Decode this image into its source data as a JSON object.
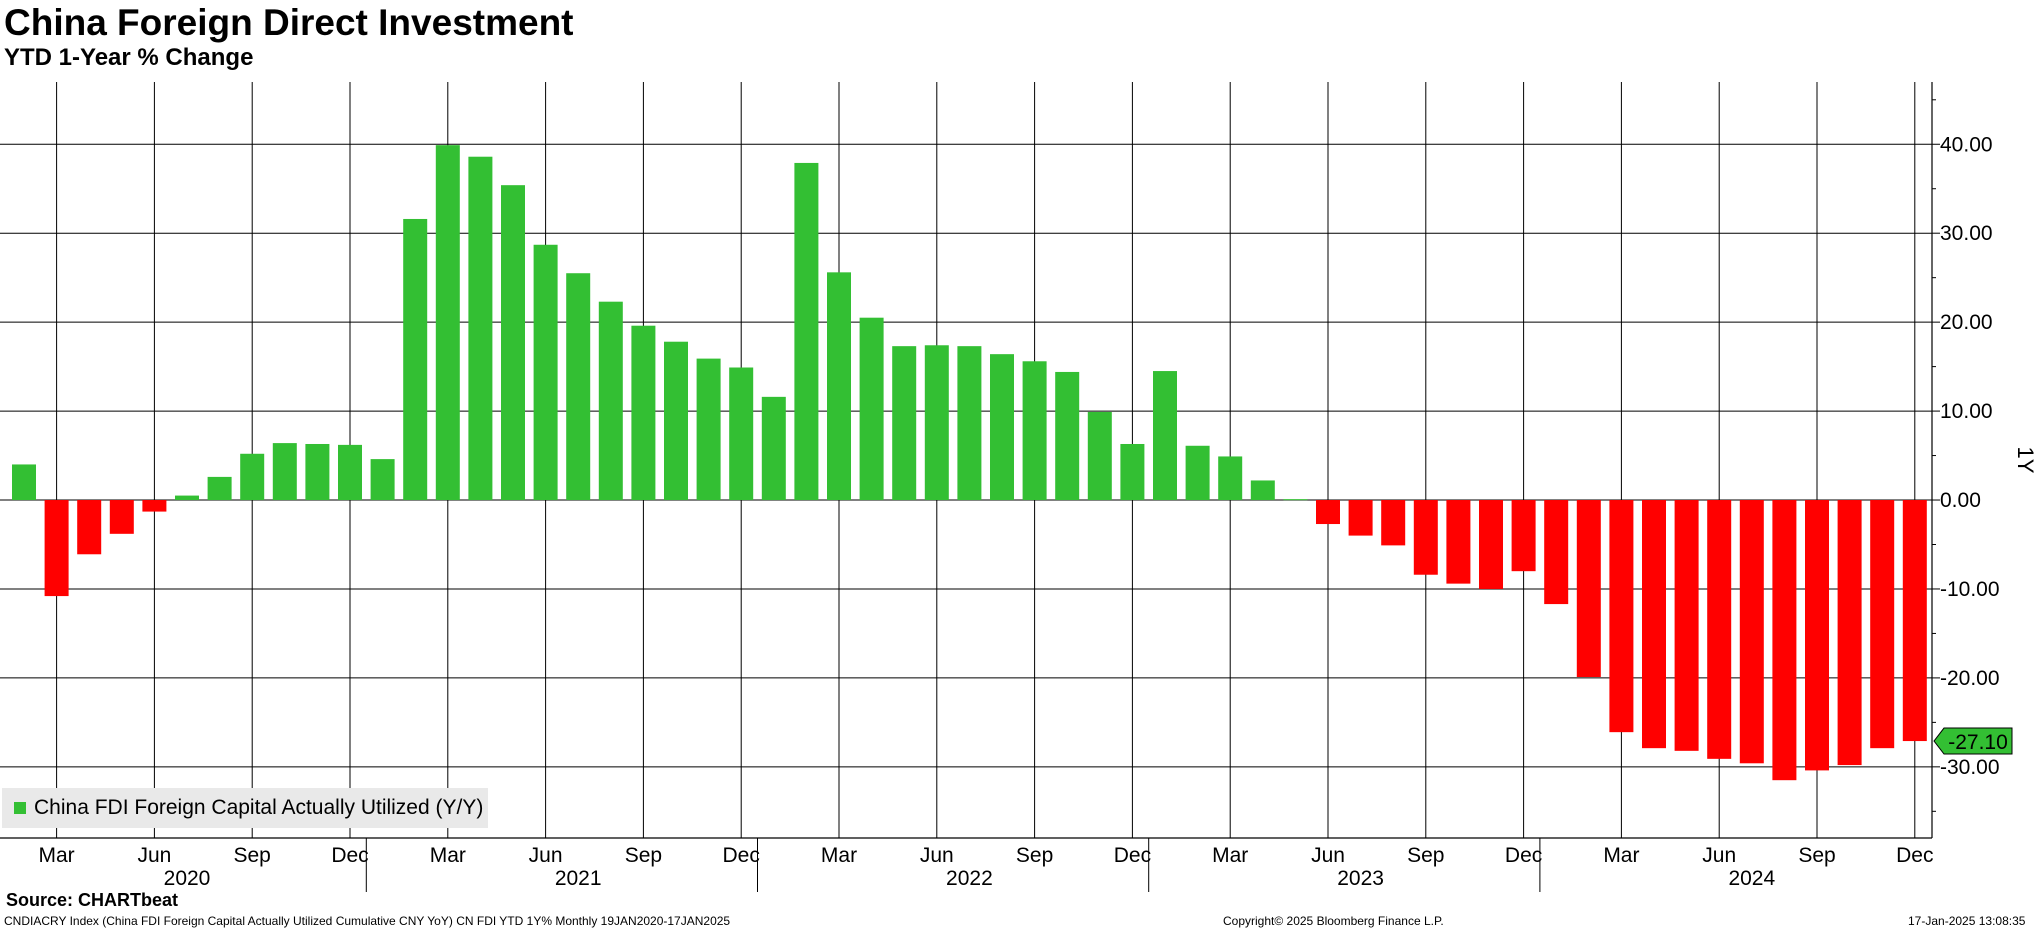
{
  "header": {
    "title": "China Foreign Direct Investment",
    "subtitle": "YTD 1-Year % Change"
  },
  "footer": {
    "source": "Source: CHARTbeat",
    "left": "CNDIACRY Index (China FDI Foreign Capital Actually Utilized Cumulative CNY YoY) CN FDI YTD 1Y%  Monthly 19JAN2020-17JAN2025",
    "center": "Copyright© 2025 Bloomberg Finance L.P.",
    "right": "17-Jan-2025 13:08:35"
  },
  "colors": {
    "positive": "#33bf33",
    "negative": "#ff0000",
    "last_label_bg": "#33bf33",
    "legend_bg": "#e9e9e9"
  },
  "chart_data": {
    "type": "bar",
    "ylabel": "1Y",
    "ylim": [
      -38,
      47
    ],
    "yticks": [
      40,
      30,
      20,
      10,
      0,
      -10,
      -20,
      -30
    ],
    "ytick_labels": [
      "40.00",
      "30.00",
      "20.00",
      "10.00",
      "0.00",
      "-10.00",
      "-20.00",
      "-30.00"
    ],
    "grid": true,
    "legend": {
      "position": "bottom-left",
      "label": "China FDI Foreign Capital Actually Utilized (Y/Y)"
    },
    "x": [
      "2020-02",
      "2020-03",
      "2020-04",
      "2020-05",
      "2020-06",
      "2020-07",
      "2020-08",
      "2020-09",
      "2020-10",
      "2020-11",
      "2020-12",
      "2021-01",
      "2021-02",
      "2021-03",
      "2021-04",
      "2021-05",
      "2021-06",
      "2021-07",
      "2021-08",
      "2021-09",
      "2021-10",
      "2021-11",
      "2021-12",
      "2022-01",
      "2022-02",
      "2022-03",
      "2022-04",
      "2022-05",
      "2022-06",
      "2022-07",
      "2022-08",
      "2022-09",
      "2022-10",
      "2022-11",
      "2022-12",
      "2023-01",
      "2023-02",
      "2023-03",
      "2023-04",
      "2023-05",
      "2023-06",
      "2023-07",
      "2023-08",
      "2023-09",
      "2023-10",
      "2023-11",
      "2023-12",
      "2024-01",
      "2024-02",
      "2024-03",
      "2024-04",
      "2024-05",
      "2024-06",
      "2024-07",
      "2024-08",
      "2024-09",
      "2024-10",
      "2024-11",
      "2024-12"
    ],
    "values": [
      4.0,
      -10.8,
      -6.1,
      -3.8,
      -1.3,
      0.5,
      2.6,
      5.2,
      6.4,
      6.3,
      6.2,
      4.6,
      31.6,
      39.9,
      38.6,
      35.4,
      28.7,
      25.5,
      22.3,
      19.6,
      17.8,
      15.9,
      14.9,
      11.6,
      37.9,
      25.6,
      20.5,
      17.3,
      17.4,
      17.3,
      16.4,
      15.6,
      14.4,
      9.9,
      6.3,
      14.5,
      6.1,
      4.9,
      2.2,
      0.1,
      -2.7,
      -4.0,
      -5.1,
      -8.4,
      -9.4,
      -10.0,
      -8.0,
      -11.7,
      -19.9,
      -26.1,
      -27.9,
      -28.2,
      -29.1,
      -29.6,
      -31.5,
      -30.4,
      -29.8,
      -27.9,
      -27.1
    ],
    "x_tick_labels": [
      {
        "at": "2020-03",
        "label": "Mar"
      },
      {
        "at": "2020-06",
        "label": "Jun"
      },
      {
        "at": "2020-09",
        "label": "Sep"
      },
      {
        "at": "2020-12",
        "label": "Dec"
      },
      {
        "at": "2021-03",
        "label": "Mar"
      },
      {
        "at": "2021-06",
        "label": "Jun"
      },
      {
        "at": "2021-09",
        "label": "Sep"
      },
      {
        "at": "2021-12",
        "label": "Dec"
      },
      {
        "at": "2022-03",
        "label": "Mar"
      },
      {
        "at": "2022-06",
        "label": "Jun"
      },
      {
        "at": "2022-09",
        "label": "Sep"
      },
      {
        "at": "2022-12",
        "label": "Dec"
      },
      {
        "at": "2023-03",
        "label": "Mar"
      },
      {
        "at": "2023-06",
        "label": "Jun"
      },
      {
        "at": "2023-09",
        "label": "Sep"
      },
      {
        "at": "2023-12",
        "label": "Dec"
      },
      {
        "at": "2024-03",
        "label": "Mar"
      },
      {
        "at": "2024-06",
        "label": "Jun"
      },
      {
        "at": "2024-09",
        "label": "Sep"
      },
      {
        "at": "2024-12",
        "label": "Dec"
      }
    ],
    "year_labels": [
      {
        "at": "2020-07",
        "label": "2020"
      },
      {
        "at": "2021-07",
        "label": "2021"
      },
      {
        "at": "2022-07",
        "label": "2022"
      },
      {
        "at": "2023-07",
        "label": "2023"
      },
      {
        "at": "2024-07",
        "label": "2024"
      }
    ],
    "last_value_label": "-27.10"
  }
}
